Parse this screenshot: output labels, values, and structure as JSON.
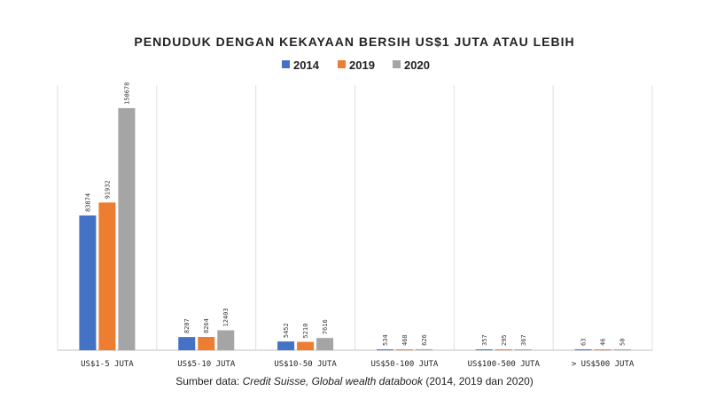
{
  "chart_data": {
    "type": "bar",
    "title": "PENDUDUK DENGAN KEKAYAAN BERSIH US$1 JUTA ATAU LEBIH",
    "categories": [
      "US$1-5 JUTA",
      "US$5-10 JUTA",
      "US$10-50 JUTA",
      "US$50-100 JUTA",
      "US$100-500 JUTA",
      "> US$500 JUTA"
    ],
    "series": [
      {
        "name": "2014",
        "color": "#4472c4",
        "values": [
          83874,
          8207,
          5452,
          534,
          357,
          63
        ]
      },
      {
        "name": "2019",
        "color": "#ed7d31",
        "values": [
          91932,
          8264,
          5210,
          468,
          295,
          46
        ]
      },
      {
        "name": "2020",
        "color": "#a5a5a5",
        "values": [
          150678,
          12403,
          7616,
          626,
          367,
          50
        ]
      }
    ],
    "ylim": [
      0,
      165000
    ],
    "grid": "vertical separators",
    "legend": "top-center"
  },
  "footer": {
    "prefix": "Sumber data: ",
    "source_italic": "Credit Suisse, Global wealth databook",
    "suffix": " (2014,  2019  dan 2020)"
  }
}
